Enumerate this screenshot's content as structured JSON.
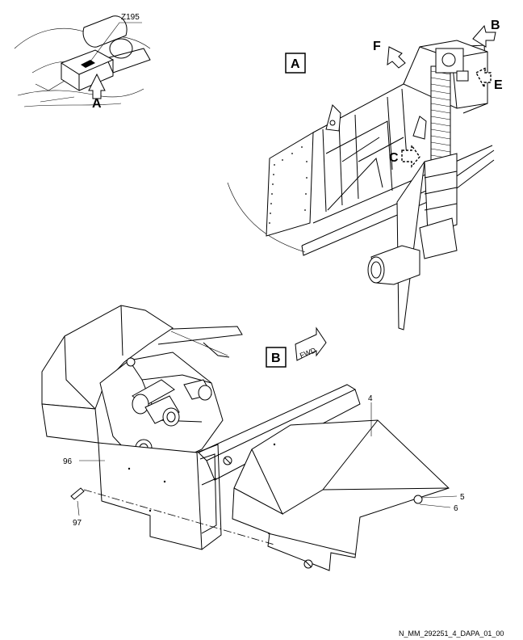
{
  "locator": {
    "zone": "Z195",
    "view_ref": "A"
  },
  "view_a": {
    "title": "A",
    "arrows": {
      "b": "B",
      "c": "C",
      "e": "E",
      "f": "F"
    }
  },
  "view_b": {
    "title": "B",
    "fwd": "FWD"
  },
  "callouts": {
    "p4": "4",
    "p5": "5",
    "p6": "6",
    "p96": "96",
    "p97": "97"
  },
  "footer": {
    "ref": "N_MM_292251_4_DAPA_01_00"
  }
}
